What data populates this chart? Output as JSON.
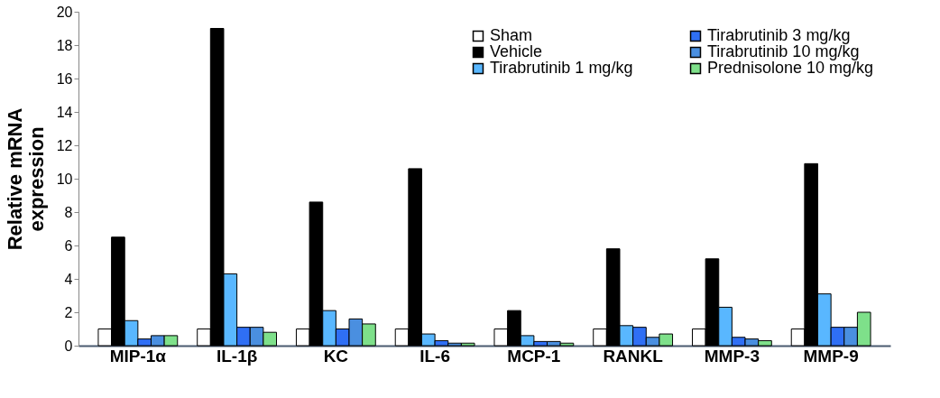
{
  "chart_data": {
    "type": "bar",
    "ylabel": "Relative mRNA expression",
    "categories": [
      "MIP-1α",
      "IL-1β",
      "KC",
      "IL-6",
      "MCP-1",
      "RANKL",
      "MMP-3",
      "MMP-9"
    ],
    "series": [
      {
        "name": "Sham",
        "color": "#ffffff",
        "values": [
          1,
          1,
          1,
          1,
          1,
          1,
          1,
          1
        ]
      },
      {
        "name": "Vehicle",
        "color": "#000000",
        "values": [
          6.5,
          19,
          8.6,
          10.6,
          2.1,
          5.8,
          5.2,
          10.9
        ]
      },
      {
        "name": "Tirabrutinib 1 mg/kg",
        "color": "#59b7ff",
        "values": [
          1.5,
          4.3,
          2.1,
          0.7,
          0.6,
          1.2,
          2.3,
          3.1
        ]
      },
      {
        "name": "Tirabrutinib 3 mg/kg",
        "color": "#2f6ff5",
        "values": [
          0.4,
          1.1,
          1.0,
          0.3,
          0.25,
          1.1,
          0.5,
          1.1
        ]
      },
      {
        "name": "Tirabrutinib 10 mg/kg",
        "color": "#4a8fe0",
        "values": [
          0.6,
          1.1,
          1.6,
          0.15,
          0.25,
          0.5,
          0.4,
          1.1
        ]
      },
      {
        "name": "Prednisolone 10 mg/kg",
        "color": "#7ee08a",
        "values": [
          0.6,
          0.8,
          1.3,
          0.15,
          0.15,
          0.7,
          0.3,
          2.0
        ]
      }
    ],
    "ylim": [
      0,
      20
    ],
    "yticks": [
      0,
      2,
      4,
      6,
      8,
      10,
      12,
      14,
      16,
      18,
      20
    ],
    "grid": false,
    "legend": "top right"
  }
}
